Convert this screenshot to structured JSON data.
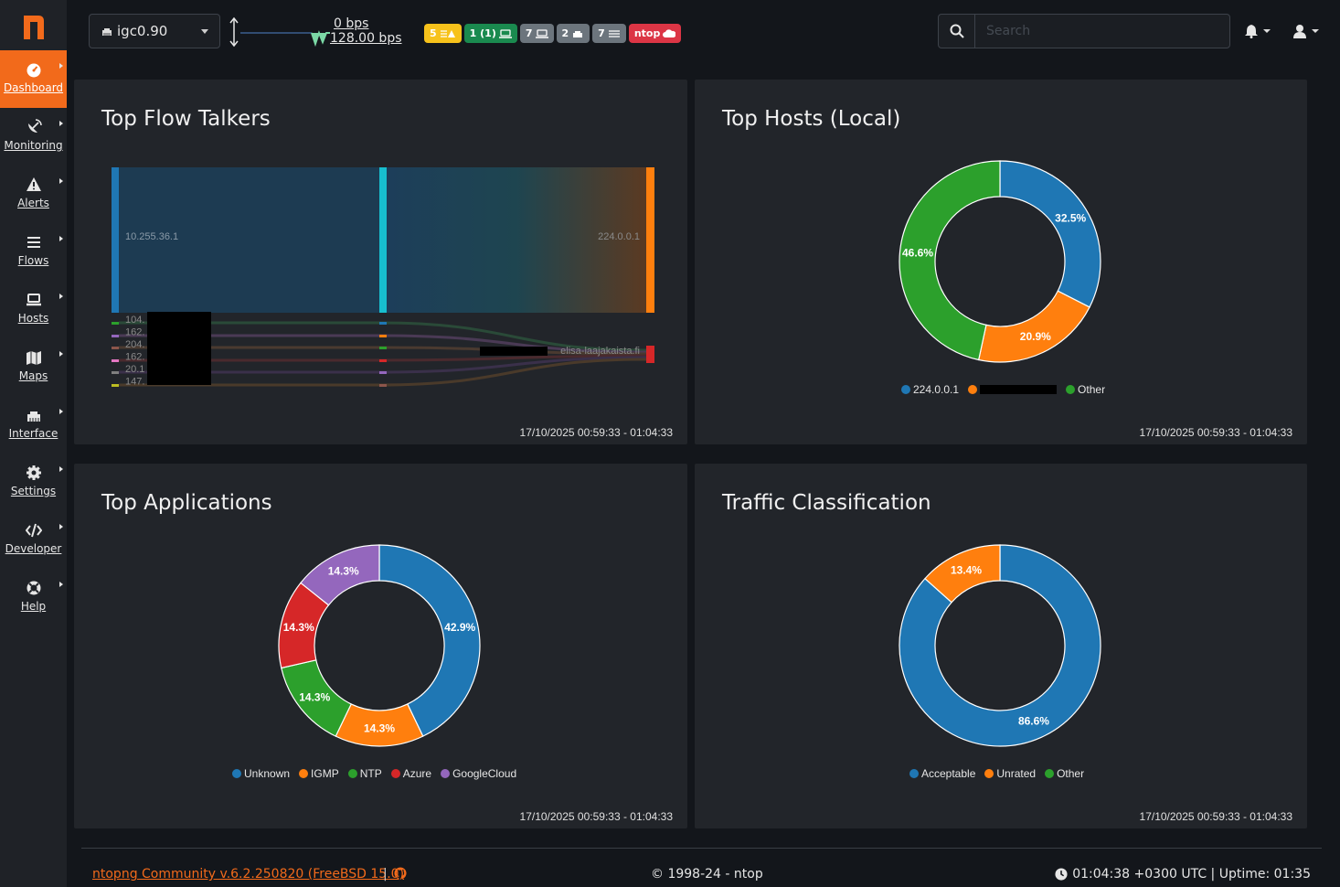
{
  "sidebar": {
    "logo": "n",
    "items": [
      {
        "label": "Dashboard",
        "icon": "gauge-icon",
        "active": true
      },
      {
        "label": "Monitoring",
        "icon": "satellite-dish-icon"
      },
      {
        "label": "Alerts",
        "icon": "warning-icon"
      },
      {
        "label": "Flows",
        "icon": "stream-icon"
      },
      {
        "label": "Hosts",
        "icon": "laptop-icon"
      },
      {
        "label": "Maps",
        "icon": "map-icon"
      },
      {
        "label": "Interface",
        "icon": "ethernet-icon"
      },
      {
        "label": "Settings",
        "icon": "gear-icon"
      },
      {
        "label": "Developer",
        "icon": "code-icon"
      },
      {
        "label": "Help",
        "icon": "lifebuoy-icon"
      }
    ]
  },
  "header": {
    "interface": "igc0.90",
    "throughput_up": "0 bps",
    "throughput_down": "128.00 bps",
    "badges": [
      {
        "text": "5",
        "icon": "list-warning-icon",
        "color": "#f7c21b"
      },
      {
        "text": "1 (1)",
        "icon": "laptop-icon",
        "color": "#1a8a4f"
      },
      {
        "text": "7",
        "icon": "laptop-icon",
        "color": "#6c757d"
      },
      {
        "text": "2",
        "icon": "ethernet-icon",
        "color": "#6c757d"
      },
      {
        "text": "7",
        "icon": "list-icon",
        "color": "#6c757d"
      },
      {
        "text": "ntop",
        "icon": "cloud-icon",
        "color": "#dc3545"
      }
    ],
    "search_placeholder": "Search"
  },
  "cards": {
    "flow_talkers": {
      "title": "Top Flow Talkers",
      "timestamp": "17/10/2025 00:59:33 - 01:04:33",
      "main_src": "10.255.36.1",
      "main_dst": "224.0.0.1",
      "small_srcs": [
        "104.",
        "162.",
        "204.",
        "162.",
        "20.1",
        "147."
      ],
      "small_dst": "elisa-laajakaista.fi"
    },
    "top_hosts": {
      "title": "Top Hosts (Local)",
      "timestamp": "17/10/2025 00:59:33 - 01:04:33"
    },
    "top_apps": {
      "title": "Top Applications",
      "timestamp": "17/10/2025 00:59:33 - 01:04:33"
    },
    "traffic_class": {
      "title": "Traffic Classification",
      "timestamp": "17/10/2025 00:59:33 - 01:04:33"
    }
  },
  "chart_data": [
    {
      "type": "pie",
      "title": "Top Hosts (Local)",
      "categories": [
        "224.0.0.1",
        "",
        "Other"
      ],
      "values": [
        32.5,
        20.9,
        46.6
      ],
      "colors": [
        "#1f77b4",
        "#ff7f0e",
        "#2ca02c"
      ],
      "labels": [
        "32.5%",
        "20.9%",
        "46.6%"
      ]
    },
    {
      "type": "pie",
      "title": "Top Applications",
      "categories": [
        "Unknown",
        "IGMP",
        "NTP",
        "Azure",
        "GoogleCloud"
      ],
      "values": [
        42.9,
        14.3,
        14.3,
        14.3,
        14.3
      ],
      "colors": [
        "#1f77b4",
        "#ff7f0e",
        "#2ca02c",
        "#d62728",
        "#9467bd"
      ],
      "labels": [
        "42.9%",
        "14.3%",
        "14.3%",
        "14.3%",
        "14.3%"
      ]
    },
    {
      "type": "pie",
      "title": "Traffic Classification",
      "categories": [
        "Acceptable",
        "Unrated",
        "Other"
      ],
      "values": [
        86.6,
        13.4,
        0
      ],
      "colors": [
        "#1f77b4",
        "#ff7f0e",
        "#2ca02c"
      ],
      "labels": [
        "86.6%",
        "13.4%",
        ""
      ]
    }
  ],
  "footer": {
    "version": "ntopng Community v.6.2.250820 (FreeBSD 15.0)",
    "separator": "|",
    "copyright": "© 1998-24 - ntop",
    "clock": "01:04:38 +0300 UTC | Uptime: 01:35"
  },
  "colors": {
    "accent": "#f26a1b",
    "card_bg": "#22252a",
    "page_bg": "#13161b"
  }
}
